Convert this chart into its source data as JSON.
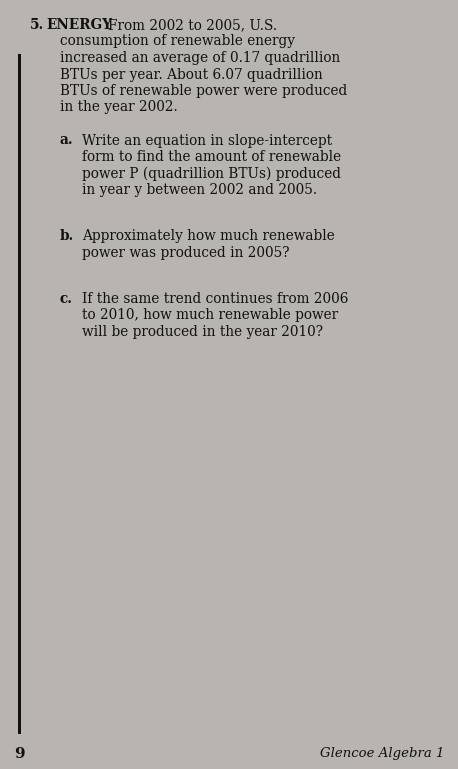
{
  "background_color": "#b8b4b0",
  "problem_number": "5.",
  "subject_label": "ENERGY",
  "intro_line1": "From 2002 to 2005, U.S.",
  "intro_line2": "consumption of renewable energy",
  "intro_line3": "increased an average of 0.17 quadrillion",
  "intro_line4": "BTUs per year. About 6.07 quadrillion",
  "intro_line5": "BTUs of renewable power were produced",
  "intro_line6": "in the year 2002.",
  "part_a_label": "a.",
  "part_a_line1": "Write an equation in slope-intercept",
  "part_a_line2": "form to find the amount of renewable",
  "part_a_line3": "power P (quadrillion BTUs) produced",
  "part_a_line4": "in year y between 2002 and 2005.",
  "part_b_label": "b.",
  "part_b_line1": "Approximately how much renewable",
  "part_b_line2": "power was produced in 2005?",
  "part_c_label": "c.",
  "part_c_line1": "If the same trend continues from 2006",
  "part_c_line2": "to 2010, how much renewable power",
  "part_c_line3": "will be produced in the year 2010?",
  "page_number": "9",
  "footer_text": "Glencoe Algebra 1",
  "text_color": "#111111",
  "left_bar_color": "#111111",
  "font_size": 9.8,
  "font_size_footer": 9.5
}
